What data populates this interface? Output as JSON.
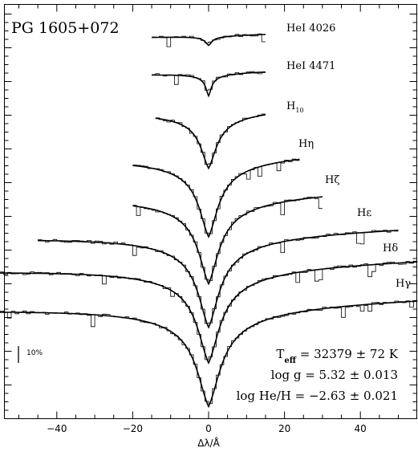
{
  "chart_data": {
    "type": "line",
    "title": "PG 1605+072",
    "xlabel": "Δλ/Å",
    "xlim": [
      -55,
      55
    ],
    "x_ticks": [
      -40,
      -20,
      0,
      20,
      40
    ],
    "x_tick_labels": [
      "−40",
      "−20",
      "0",
      "20",
      "40"
    ],
    "grid": false,
    "scale_bar": {
      "label": "10%",
      "value": 0.1
    },
    "series": [
      {
        "name": "HeI 4026",
        "label_main": "HeI 4026",
        "label_sub": "",
        "x_range": [
          -15,
          15
        ],
        "depth": 0.06,
        "width": 1.0
      },
      {
        "name": "HeI 4471",
        "label_main": "HeI 4471",
        "label_sub": "",
        "x_range": [
          -15,
          15
        ],
        "depth": 0.14,
        "width": 0.9
      },
      {
        "name": "H10",
        "label_main": "H",
        "label_sub": "10",
        "x_range": [
          -14,
          15
        ],
        "depth": 0.36,
        "width": 2.5
      },
      {
        "name": "Hη",
        "label_main": "Hη",
        "label_sub": "",
        "x_range": [
          -20,
          24
        ],
        "depth": 0.5,
        "width": 3.0
      },
      {
        "name": "Hζ",
        "label_main": "Hζ",
        "label_sub": "",
        "x_range": [
          -20,
          30
        ],
        "depth": 0.55,
        "width": 3.2
      },
      {
        "name": "Hε",
        "label_main": "Hε",
        "label_sub": "",
        "x_range": [
          -45,
          50
        ],
        "depth": 0.58,
        "width": 3.3
      },
      {
        "name": "Hδ",
        "label_main": "Hδ",
        "label_sub": "",
        "x_range": [
          -55,
          55
        ],
        "depth": 0.6,
        "width": 3.5
      },
      {
        "name": "Hγ",
        "label_main": "Hγ",
        "label_sub": "",
        "x_range": [
          -55,
          55
        ],
        "depth": 0.63,
        "width": 3.7
      }
    ],
    "annotations": [
      {
        "main": "T",
        "sub": "eff",
        "rest": " = 32379 ± 72 K"
      },
      {
        "main": "log  g = 5.32 ± 0.013",
        "sub": "",
        "rest": ""
      },
      {
        "main": "log  He/H = −2.63 ± 0.021",
        "sub": "",
        "rest": ""
      }
    ]
  }
}
